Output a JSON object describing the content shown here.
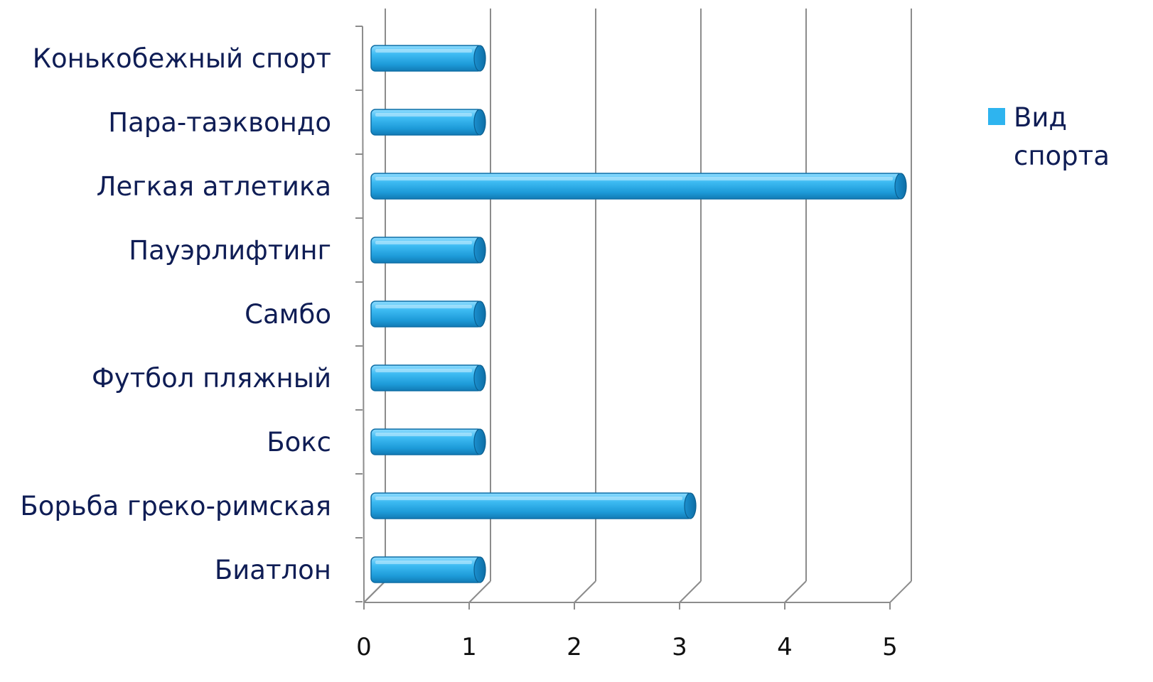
{
  "chart_data": {
    "type": "bar",
    "orientation": "horizontal",
    "three_d": true,
    "categories": [
      "Конькобежный спорт",
      "Пара-таэквондо",
      "Легкая атлетика",
      "Пауэрлифтинг",
      "Самбо",
      "Футбол пляжный",
      "Бокс",
      "Борьба греко-римская",
      "Биатлон"
    ],
    "series": [
      {
        "name": "Вид спорта",
        "legend_lines": [
          "Вид",
          "спорта"
        ],
        "color": "#2eb4ef",
        "values": [
          1,
          1,
          5,
          1,
          1,
          1,
          1,
          3,
          1
        ]
      }
    ],
    "x_ticks": [
      "0",
      "1",
      "2",
      "3",
      "4",
      "5"
    ],
    "xlim": [
      0,
      5
    ],
    "grid": true,
    "legend_position": "right"
  }
}
